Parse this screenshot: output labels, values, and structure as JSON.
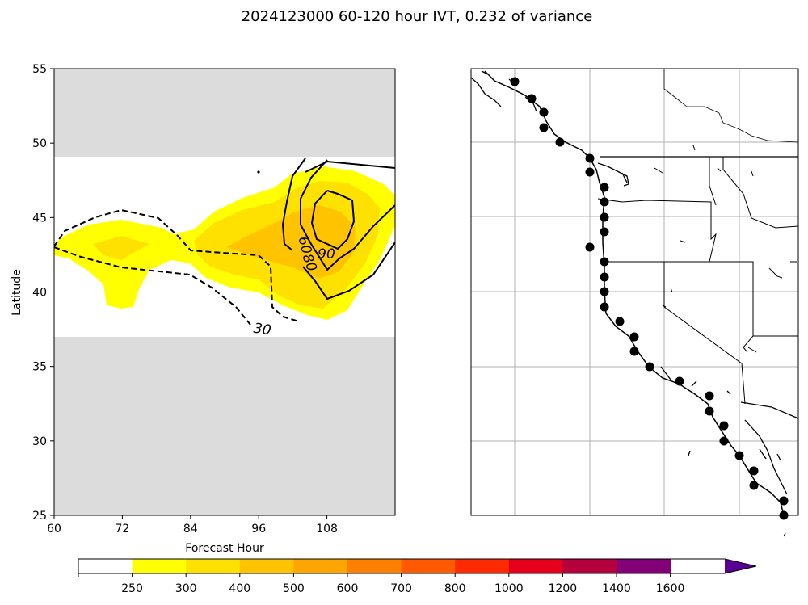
{
  "chart_data": [
    {
      "type": "contour",
      "title": "2024123000 60-120 hour IVT, 0.232 of variance",
      "xlabel": "Forecast Hour",
      "ylabel": "Latitude",
      "xlim": [
        60,
        120
      ],
      "ylim": [
        25,
        55
      ],
      "xticks": [
        "60",
        "72",
        "84",
        "96",
        "108"
      ],
      "yticks": [
        "25",
        "30",
        "35",
        "40",
        "45",
        "50",
        "55"
      ],
      "masked_lat_bands": [
        [
          25,
          37
        ],
        [
          49,
          55
        ]
      ],
      "filled_contours": [
        {
          "level": "250-300",
          "color": "#ffff00"
        },
        {
          "level": "300-400",
          "color": "#ffe100"
        },
        {
          "level": "400-500",
          "color": "#ffc300"
        }
      ],
      "line_contours": [
        {
          "level": "30",
          "style": "dashed"
        },
        {
          "level": "60",
          "style": "solid"
        },
        {
          "level": "90",
          "style": "solid"
        }
      ],
      "contour_labels": [
        "30",
        "60",
        "90",
        "80"
      ]
    },
    {
      "type": "map",
      "region": "US West Coast",
      "gridlines": true,
      "point_markers": 30
    }
  ],
  "colorbar": {
    "tick_labels": [
      "250",
      "300",
      "400",
      "500",
      "600",
      "700",
      "800",
      "1000",
      "1200",
      "1400",
      "1600"
    ],
    "colors": [
      "#ffffff",
      "#ffff00",
      "#ffe100",
      "#ffc300",
      "#ffa500",
      "#ff8000",
      "#ff5a00",
      "#ff2a00",
      "#e6001e",
      "#b4003c",
      "#820078",
      "#5a0096"
    ],
    "extend": "max"
  }
}
